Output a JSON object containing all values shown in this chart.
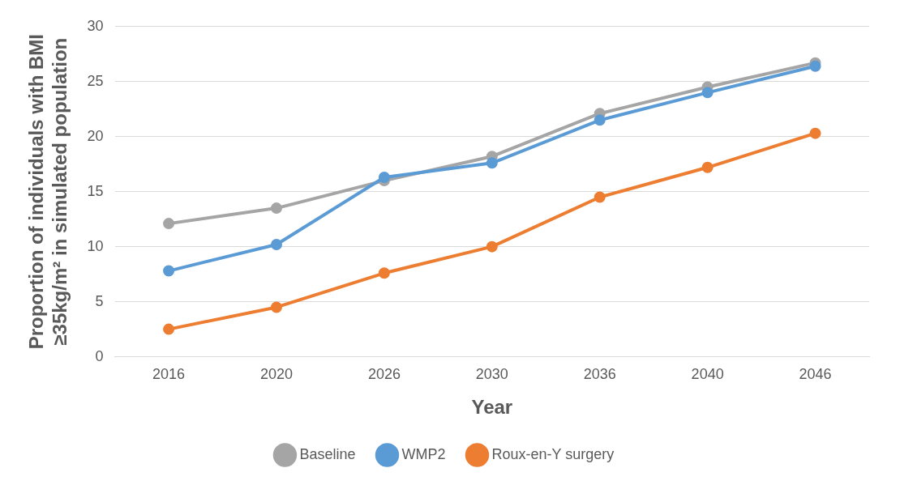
{
  "chart_data": {
    "type": "line",
    "xlabel": "Year",
    "ylabel": "Proportion of individuals with BMI\n≥35kg/m² in simulated population",
    "categories": [
      "2016",
      "2020",
      "2026",
      "2030",
      "2036",
      "2040",
      "2046"
    ],
    "series": [
      {
        "name": "Baseline",
        "color": "#a5a5a5",
        "values": [
          12.1,
          13.5,
          16.0,
          18.2,
          22.1,
          24.5,
          26.7
        ]
      },
      {
        "name": "WMP2",
        "color": "#5b9bd5",
        "values": [
          7.8,
          10.2,
          16.3,
          17.6,
          21.5,
          24.0,
          26.4
        ]
      },
      {
        "name": "Roux-en-Y surgery",
        "color": "#ed7d31",
        "values": [
          2.5,
          4.5,
          7.6,
          10.0,
          14.5,
          17.2,
          20.3
        ]
      }
    ],
    "ylim": [
      0,
      30
    ],
    "yticks": [
      0,
      5,
      10,
      15,
      20,
      25,
      30
    ],
    "grid": "y",
    "legend": "bottom",
    "marker": "circle",
    "line_style": "solid"
  }
}
